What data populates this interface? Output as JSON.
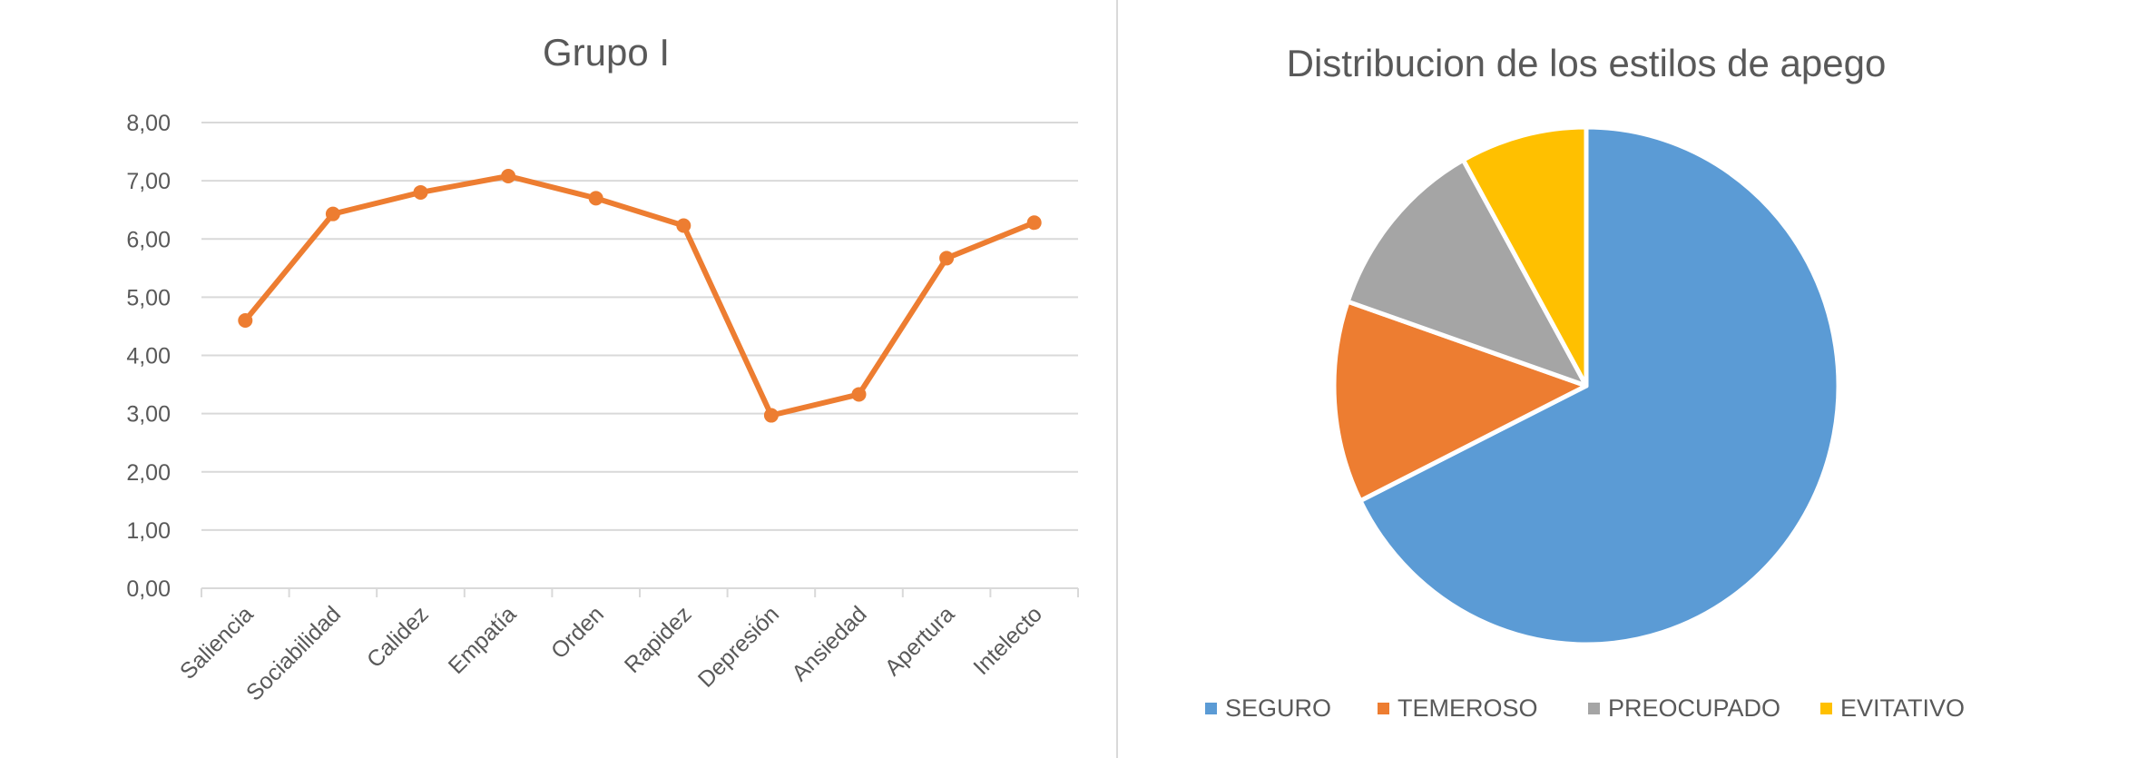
{
  "chart_data": [
    {
      "type": "line",
      "title": "Grupo I",
      "categories": [
        "Saliencia",
        "Sociabilidad",
        "Calidez",
        "Empatía",
        "Orden",
        "Rapidez",
        "Depresión",
        "Ansiedad",
        "Apertura",
        "Intelecto"
      ],
      "values": [
        4.6,
        6.43,
        6.8,
        7.08,
        6.7,
        6.23,
        2.97,
        3.33,
        5.67,
        6.28
      ],
      "ylim": [
        0,
        8
      ],
      "yticks": [
        "0,00",
        "1,00",
        "2,00",
        "3,00",
        "4,00",
        "5,00",
        "6,00",
        "7,00",
        "8,00"
      ],
      "grid": true,
      "color": "#ED7D31"
    },
    {
      "type": "pie",
      "title": "Distribucion de los estilos de apego",
      "labels": [
        "SEGURO",
        "TEMEROSO",
        "PREOCUPADO",
        "EVITATIVO"
      ],
      "values": [
        67.6,
        12.6,
        11.6,
        8.1
      ],
      "colors": [
        "#5B9BD5",
        "#ED7D31",
        "#A5A5A5",
        "#FFC000"
      ],
      "legend": "bottom"
    }
  ]
}
